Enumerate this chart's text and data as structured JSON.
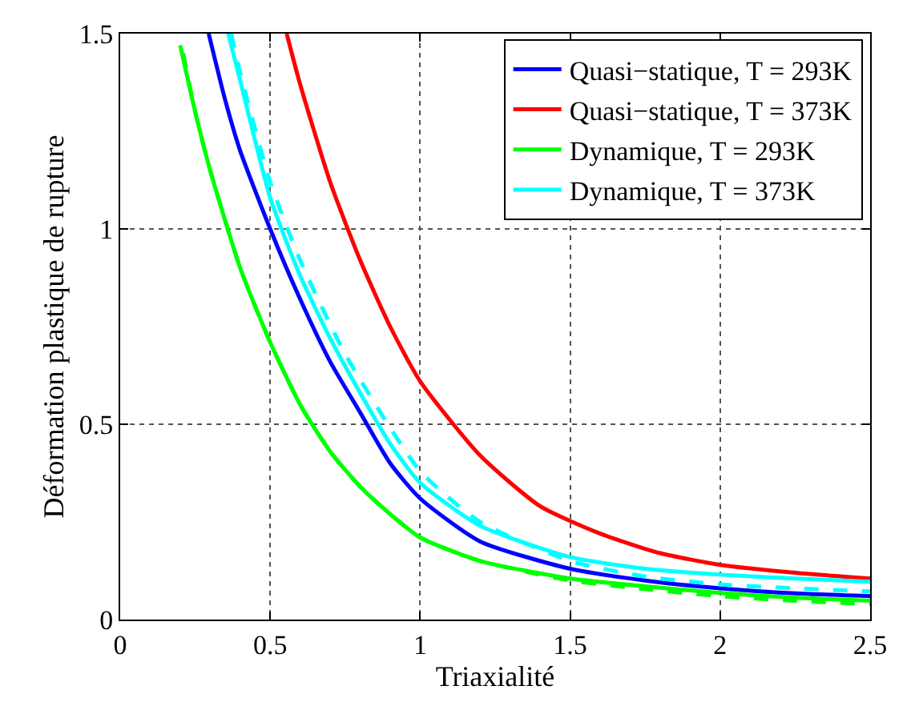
{
  "chart_data": {
    "type": "line",
    "xlabel": "Triaxialité",
    "ylabel": "Déformation plastique de rupture",
    "xlim": [
      0,
      2.5
    ],
    "xticks": [
      0,
      0.5,
      1,
      1.5,
      2,
      2.5
    ],
    "ylim": [
      0,
      1.5
    ],
    "yticks": [
      0,
      0.5,
      1,
      1.5
    ],
    "grid": true,
    "legend": "top right",
    "line_style": "solid",
    "series": [
      {
        "name": "Quasi−statique, T = 293K",
        "color": "#0000ff",
        "x": [
          0.295,
          0.35,
          0.4,
          0.5,
          0.6,
          0.7,
          0.8,
          0.9,
          1.0,
          1.2,
          1.5,
          1.75,
          2.0,
          2.25,
          2.5
        ],
        "values": [
          1.5,
          1.33,
          1.2,
          1.0,
          0.82,
          0.66,
          0.53,
          0.4,
          0.31,
          0.2,
          0.13,
          0.1,
          0.08,
          0.067,
          0.06
        ]
      },
      {
        "name": "Quasi−statique, T = 373K",
        "color": "#ff0000",
        "x": [
          0.555,
          0.6,
          0.7,
          0.8,
          0.9,
          1.0,
          1.2,
          1.4,
          1.6,
          1.8,
          2.0,
          2.25,
          2.5
        ],
        "values": [
          1.5,
          1.37,
          1.12,
          0.92,
          0.75,
          0.61,
          0.42,
          0.29,
          0.22,
          0.17,
          0.14,
          0.12,
          0.105
        ]
      },
      {
        "name": "Dynamique, T = 293K",
        "color": "#00ff00",
        "x": [
          0.2,
          0.25,
          0.3,
          0.4,
          0.5,
          0.6,
          0.7,
          0.8,
          0.9,
          1.0,
          1.2,
          1.5,
          1.75,
          2.0,
          2.25,
          2.5
        ],
        "values": [
          1.47,
          1.3,
          1.15,
          0.9,
          0.71,
          0.55,
          0.43,
          0.34,
          0.27,
          0.21,
          0.15,
          0.105,
          0.085,
          0.068,
          0.056,
          0.048
        ]
      },
      {
        "name": "Dynamique, T = 373K",
        "color": "#00ffff",
        "x": [
          0.36,
          0.4,
          0.5,
          0.6,
          0.7,
          0.8,
          0.9,
          1.0,
          1.2,
          1.5,
          1.75,
          2.0,
          2.25,
          2.5
        ],
        "values": [
          1.5,
          1.38,
          1.08,
          0.88,
          0.72,
          0.58,
          0.45,
          0.35,
          0.24,
          0.16,
          0.13,
          0.115,
          0.105,
          0.097
        ]
      },
      {
        "color": "#00ff00",
        "line_style": "dashed",
        "x": [
          0.21,
          0.25,
          0.3,
          0.4,
          0.5,
          0.6,
          0.7,
          0.8,
          0.9,
          1.0,
          1.2,
          1.5,
          1.75,
          2.0,
          2.25,
          2.5
        ],
        "values": [
          1.45,
          1.3,
          1.15,
          0.9,
          0.71,
          0.55,
          0.43,
          0.34,
          0.27,
          0.21,
          0.15,
          0.1,
          0.078,
          0.06,
          0.048,
          0.04
        ]
      },
      {
        "color": "#00ffff",
        "line_style": "dashed",
        "x": [
          0.37,
          0.4,
          0.5,
          0.6,
          0.75,
          1.0,
          1.2,
          1.5,
          1.75,
          2.0,
          2.25,
          2.5
        ],
        "values": [
          1.5,
          1.4,
          1.12,
          0.92,
          0.68,
          0.38,
          0.25,
          0.15,
          0.11,
          0.09,
          0.08,
          0.072
        ]
      }
    ]
  }
}
